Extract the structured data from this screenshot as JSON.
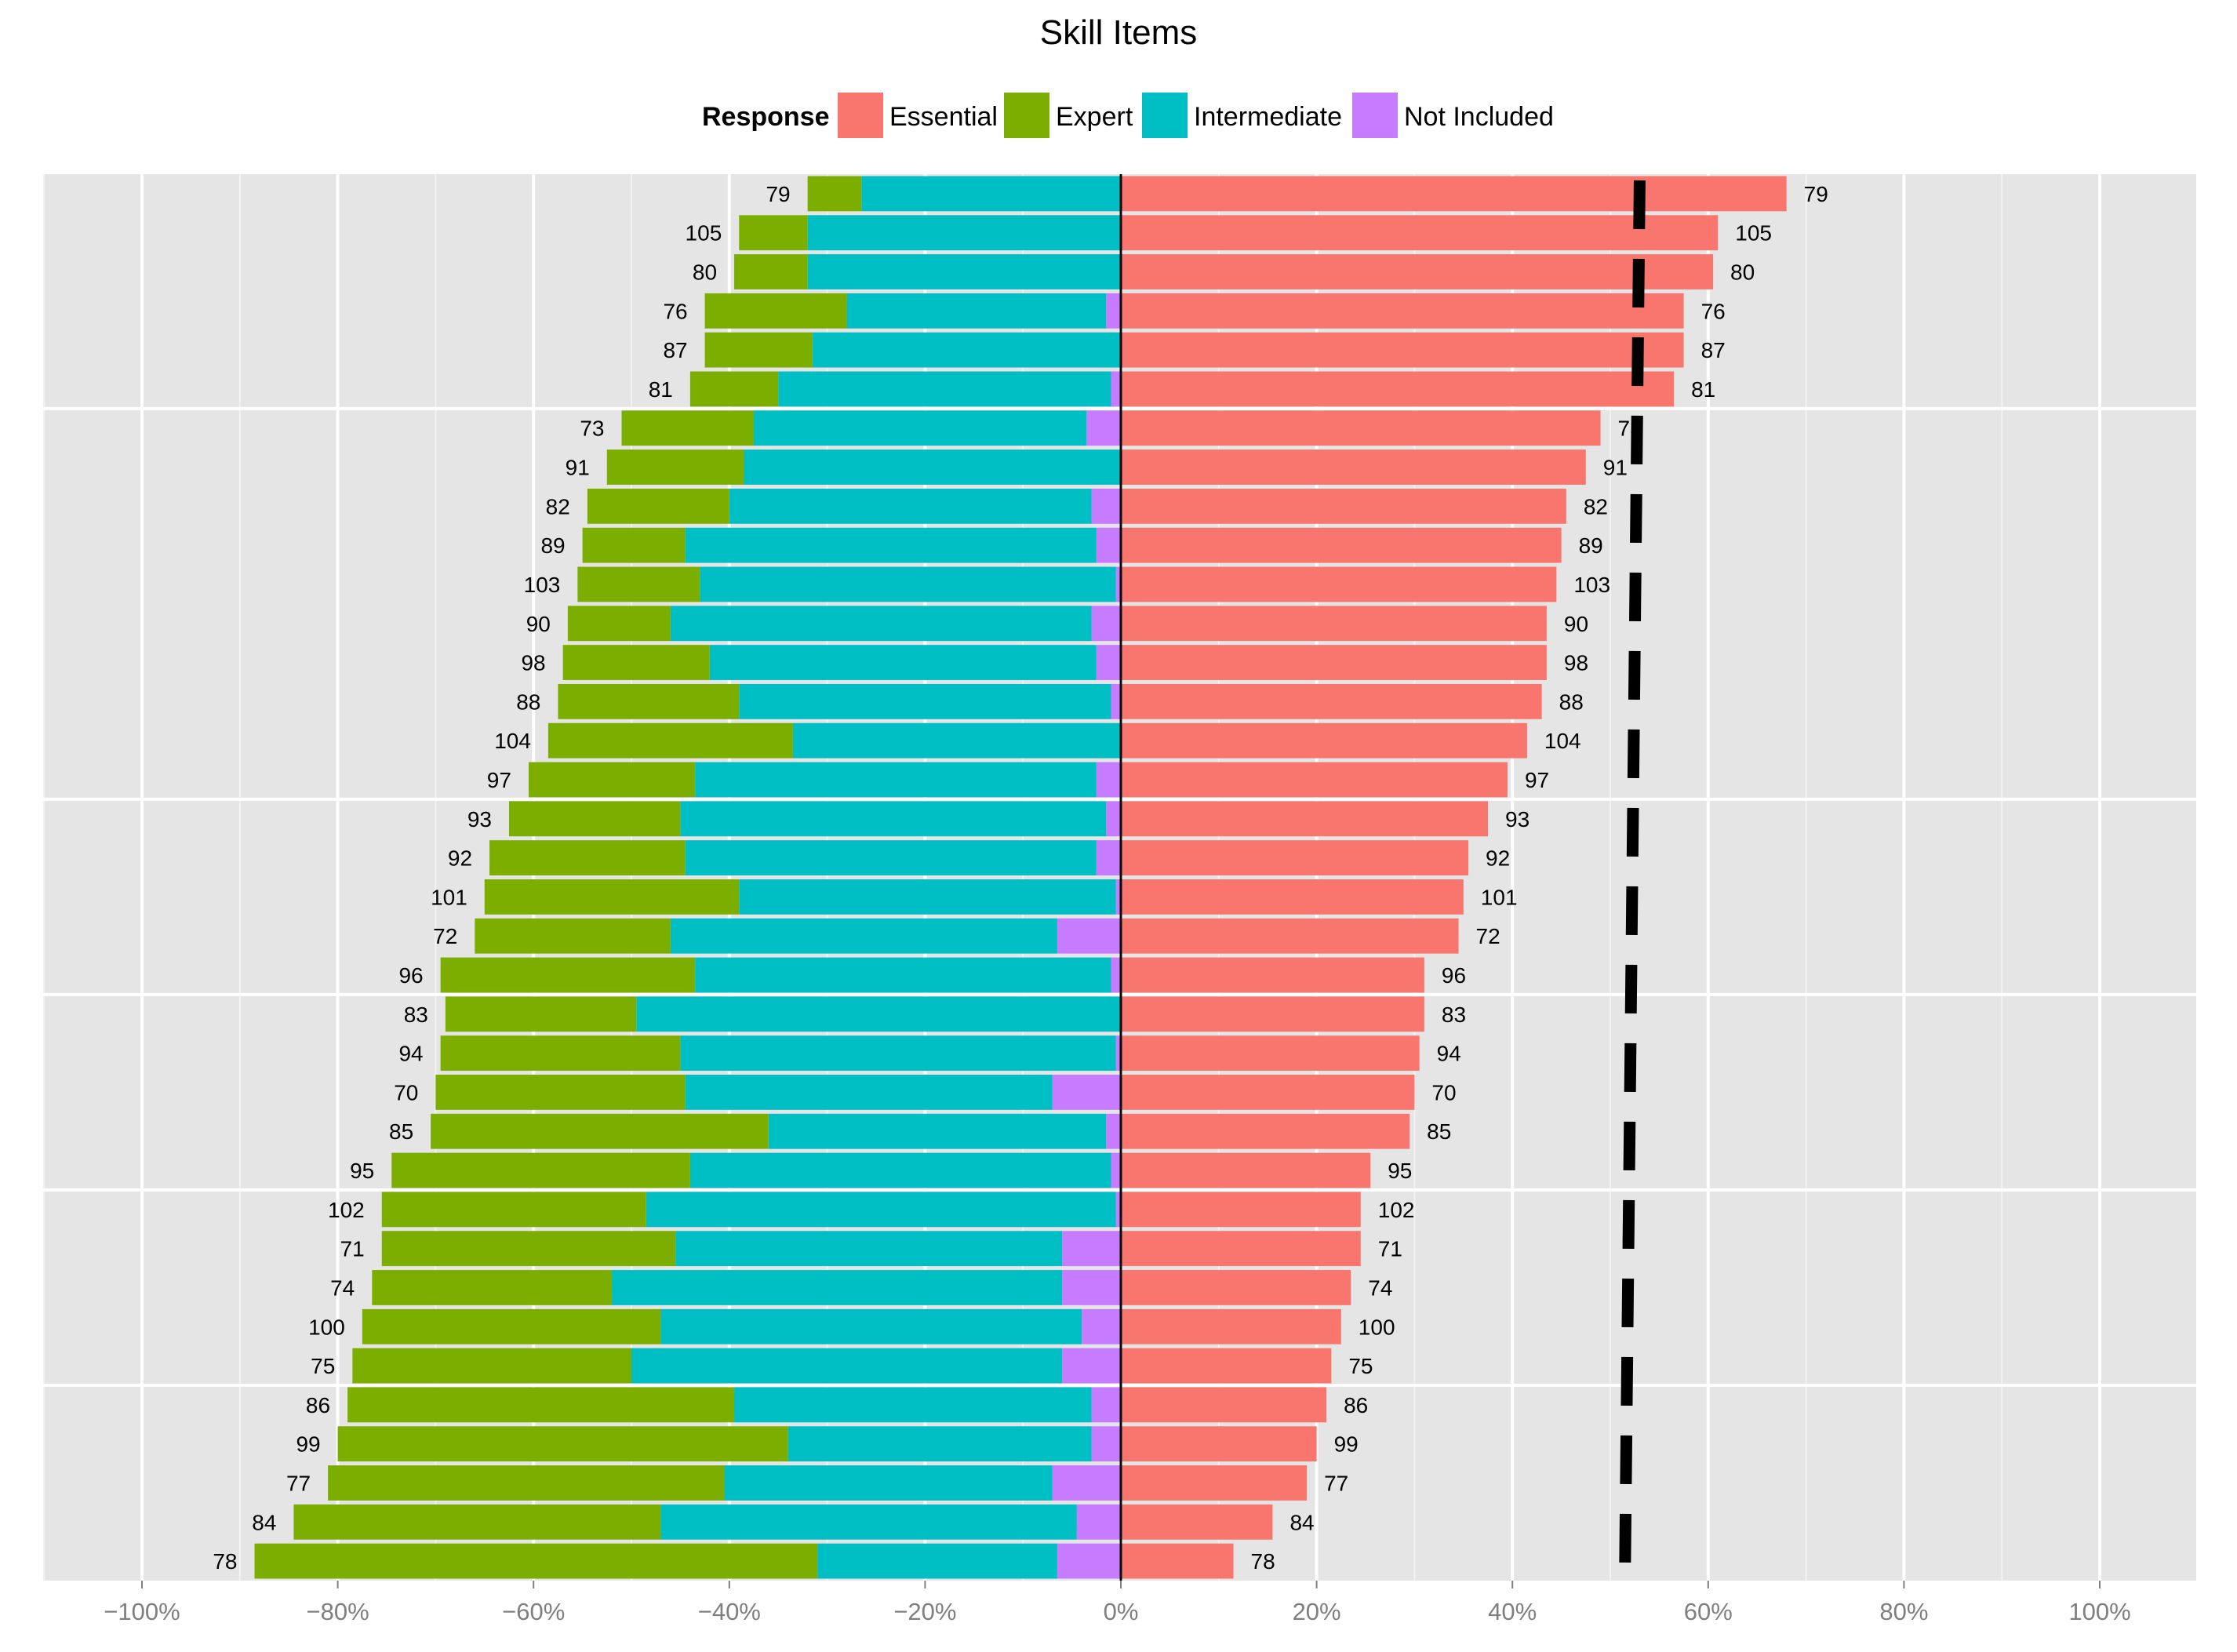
{
  "chart_data": {
    "type": "bar",
    "orientation": "horizontal-diverging",
    "title": "Skill Items",
    "legend": {
      "title": "Response",
      "position": "top",
      "entries": [
        {
          "name": "Essential",
          "color": "#F8766D"
        },
        {
          "name": "Expert",
          "color": "#7CAE00"
        },
        {
          "name": "Intermediate",
          "color": "#00BFC4"
        },
        {
          "name": "Not Included",
          "color": "#C77CFF"
        }
      ]
    },
    "xlim": [
      -110,
      110
    ],
    "x_ticks": [
      {
        "value": -100,
        "label": "−100%"
      },
      {
        "value": -80,
        "label": "−80%"
      },
      {
        "value": -60,
        "label": "−60%"
      },
      {
        "value": -40,
        "label": "−40%"
      },
      {
        "value": -20,
        "label": "−20%"
      },
      {
        "value": 0,
        "label": "0%"
      },
      {
        "value": 20,
        "label": "20%"
      },
      {
        "value": 40,
        "label": "40%"
      },
      {
        "value": 60,
        "label": "60%"
      },
      {
        "value": 80,
        "label": "80%"
      },
      {
        "value": 100,
        "label": "100%"
      }
    ],
    "grid": true,
    "reference_line": {
      "style": "dashed",
      "color": "#000000",
      "x_top": 53,
      "x_bottom": 51.5
    },
    "series_order": [
      "Not Included",
      "Intermediate",
      "Expert"
    ],
    "items": [
      {
        "label": "79",
        "essential": 68,
        "not_included": 0,
        "intermediate": 26.5,
        "expert": 5.5
      },
      {
        "label": "105",
        "essential": 61,
        "not_included": 0,
        "intermediate": 32,
        "expert": 7
      },
      {
        "label": "80",
        "essential": 60.5,
        "not_included": 0,
        "intermediate": 32,
        "expert": 7.5
      },
      {
        "label": "76",
        "essential": 57.5,
        "not_included": 1.5,
        "intermediate": 26.5,
        "expert": 14.5
      },
      {
        "label": "87",
        "essential": 57.5,
        "not_included": 0,
        "intermediate": 31.5,
        "expert": 11
      },
      {
        "label": "81",
        "essential": 56.5,
        "not_included": 1,
        "intermediate": 34,
        "expert": 9
      },
      {
        "label": "73",
        "essential": 49,
        "not_included": 3.5,
        "intermediate": 34,
        "expert": 13.5
      },
      {
        "label": "91",
        "essential": 47.5,
        "not_included": 0,
        "intermediate": 38.5,
        "expert": 14
      },
      {
        "label": "82",
        "essential": 45.5,
        "not_included": 3,
        "intermediate": 37,
        "expert": 14.5
      },
      {
        "label": "89",
        "essential": 45,
        "not_included": 2.5,
        "intermediate": 42,
        "expert": 10.5
      },
      {
        "label": "103",
        "essential": 44.5,
        "not_included": 0.5,
        "intermediate": 42.5,
        "expert": 12.5
      },
      {
        "label": "90",
        "essential": 43.5,
        "not_included": 3,
        "intermediate": 43,
        "expert": 10.5
      },
      {
        "label": "98",
        "essential": 43.5,
        "not_included": 2.5,
        "intermediate": 39.5,
        "expert": 15
      },
      {
        "label": "88",
        "essential": 43,
        "not_included": 1,
        "intermediate": 38,
        "expert": 18.5
      },
      {
        "label": "104",
        "essential": 41.5,
        "not_included": 0,
        "intermediate": 33.5,
        "expert": 25
      },
      {
        "label": "97",
        "essential": 39.5,
        "not_included": 2.5,
        "intermediate": 41,
        "expert": 17
      },
      {
        "label": "93",
        "essential": 37.5,
        "not_included": 1.5,
        "intermediate": 43.5,
        "expert": 17.5
      },
      {
        "label": "92",
        "essential": 35.5,
        "not_included": 2.5,
        "intermediate": 42,
        "expert": 20
      },
      {
        "label": "101",
        "essential": 35,
        "not_included": 0.5,
        "intermediate": 38.5,
        "expert": 26
      },
      {
        "label": "72",
        "essential": 34.5,
        "not_included": 6.5,
        "intermediate": 39.5,
        "expert": 20
      },
      {
        "label": "96",
        "essential": 31,
        "not_included": 1,
        "intermediate": 42.5,
        "expert": 26
      },
      {
        "label": "83",
        "essential": 31,
        "not_included": 0,
        "intermediate": 49.5,
        "expert": 19.5
      },
      {
        "label": "94",
        "essential": 30.5,
        "not_included": 0.5,
        "intermediate": 44.5,
        "expert": 24.5
      },
      {
        "label": "70",
        "essential": 30,
        "not_included": 7,
        "intermediate": 37.5,
        "expert": 25.5
      },
      {
        "label": "85",
        "essential": 29.5,
        "not_included": 1.5,
        "intermediate": 34.5,
        "expert": 34.5
      },
      {
        "label": "95",
        "essential": 25.5,
        "not_included": 1,
        "intermediate": 43,
        "expert": 30.5
      },
      {
        "label": "102",
        "essential": 24.5,
        "not_included": 0.5,
        "intermediate": 48,
        "expert": 27
      },
      {
        "label": "71",
        "essential": 24.5,
        "not_included": 6,
        "intermediate": 39.5,
        "expert": 30
      },
      {
        "label": "74",
        "essential": 23.5,
        "not_included": 6,
        "intermediate": 46,
        "expert": 24.5
      },
      {
        "label": "100",
        "essential": 22.5,
        "not_included": 4,
        "intermediate": 43,
        "expert": 30.5
      },
      {
        "label": "75",
        "essential": 21.5,
        "not_included": 6,
        "intermediate": 44,
        "expert": 28.5
      },
      {
        "label": "86",
        "essential": 21,
        "not_included": 3,
        "intermediate": 36.5,
        "expert": 39.5
      },
      {
        "label": "99",
        "essential": 20,
        "not_included": 3,
        "intermediate": 31,
        "expert": 46
      },
      {
        "label": "77",
        "essential": 19,
        "not_included": 7,
        "intermediate": 33.5,
        "expert": 40.5
      },
      {
        "label": "84",
        "essential": 15.5,
        "not_included": 4.5,
        "intermediate": 42.5,
        "expert": 37.5
      },
      {
        "label": "78",
        "essential": 11.5,
        "not_included": 6.5,
        "intermediate": 24.5,
        "expert": 57.5
      }
    ]
  }
}
